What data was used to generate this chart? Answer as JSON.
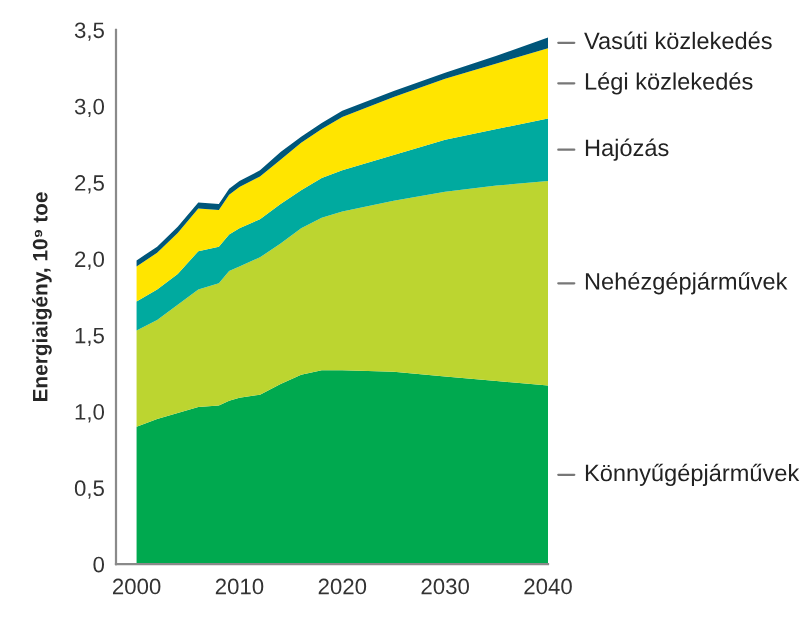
{
  "chart_data": {
    "type": "area",
    "stacked": true,
    "ylabel": "Energiaigény, 10⁹ toe",
    "x": [
      2000,
      2002,
      2004,
      2006,
      2008,
      2009,
      2010,
      2012,
      2014,
      2016,
      2018,
      2020,
      2025,
      2030,
      2035,
      2040
    ],
    "series": [
      {
        "name": "Könnyűgépjárművek",
        "color": "#00a94f",
        "values": [
          0.9,
          0.95,
          0.99,
          1.03,
          1.04,
          1.07,
          1.09,
          1.11,
          1.18,
          1.24,
          1.27,
          1.27,
          1.26,
          1.23,
          1.2,
          1.17
        ]
      },
      {
        "name": "Nehézgépjárművek",
        "color": "#bcd530",
        "values": [
          0.63,
          0.65,
          0.71,
          0.77,
          0.8,
          0.85,
          0.86,
          0.9,
          0.92,
          0.96,
          1.0,
          1.04,
          1.12,
          1.21,
          1.28,
          1.34
        ]
      },
      {
        "name": "Hajózás",
        "color": "#00aa9f",
        "values": [
          0.19,
          0.2,
          0.2,
          0.25,
          0.24,
          0.24,
          0.25,
          0.25,
          0.26,
          0.25,
          0.26,
          0.27,
          0.3,
          0.34,
          0.37,
          0.41
        ]
      },
      {
        "name": "Légi közlekedés",
        "color": "#ffe500",
        "values": [
          0.23,
          0.24,
          0.27,
          0.28,
          0.24,
          0.26,
          0.27,
          0.28,
          0.29,
          0.31,
          0.32,
          0.35,
          0.38,
          0.4,
          0.43,
          0.46
        ]
      },
      {
        "name": "Vasúti közlekedés",
        "color": "#00567a",
        "values": [
          0.04,
          0.04,
          0.04,
          0.04,
          0.04,
          0.04,
          0.04,
          0.04,
          0.05,
          0.04,
          0.04,
          0.04,
          0.04,
          0.04,
          0.05,
          0.07
        ]
      }
    ],
    "xlim": [
      1998,
      2040
    ],
    "xticks": [
      2000,
      2010,
      2020,
      2030,
      2040
    ],
    "ylim": [
      0,
      3.5
    ],
    "yticks": [
      0,
      {
        "value": 0.5,
        "label": "0,5"
      },
      {
        "value": 1.0,
        "label": "1,0"
      },
      {
        "value": 1.5,
        "label": "1,5"
      },
      {
        "value": 2.0,
        "label": "2,0"
      },
      {
        "value": 2.5,
        "label": "2,5"
      },
      {
        "value": 3.0,
        "label": "3,0"
      },
      {
        "value": 3.5,
        "label": "3,5"
      }
    ],
    "grid": false,
    "legend": false
  }
}
